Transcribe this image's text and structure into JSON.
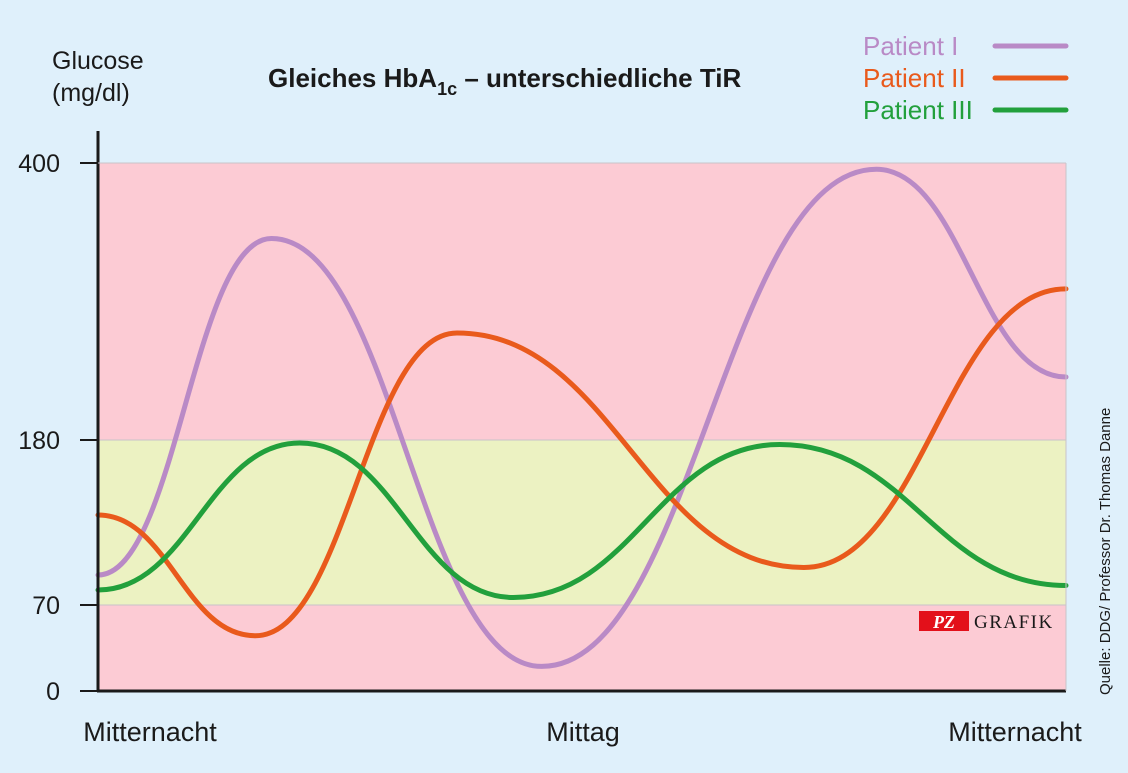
{
  "chart_data": {
    "type": "line",
    "title": "Gleiches HbA",
    "title_subscript": "1c",
    "title_suffix": " – unterschiedliche TiR",
    "ylabel_line1": "Glucose",
    "ylabel_line2": "(mg/dl)",
    "y_ticks": [
      "0",
      "70",
      "180",
      "400"
    ],
    "x_ticks": [
      "Mitternacht",
      "Mittag",
      "Mitternacht"
    ],
    "x_domain": [
      0,
      24
    ],
    "zones": [
      {
        "from": 0,
        "to": 70,
        "color": "#fccbd4"
      },
      {
        "from": 70,
        "to": 180,
        "color": "#ecf2c2"
      },
      {
        "from": 180,
        "to": 400,
        "color": "#fccbd4"
      }
    ],
    "grid": false,
    "legend_position": "top-right",
    "series": [
      {
        "name": "Patient I",
        "color": "#b98ac6",
        "x": [
          0,
          4.3,
          11,
          19.3,
          24
        ],
        "y": [
          90,
          340,
          20,
          395,
          230
        ]
      },
      {
        "name": "Patient II",
        "color": "#e95a1c",
        "x": [
          0,
          3.9,
          8.9,
          17.5,
          24
        ],
        "y": [
          130,
          45,
          265,
          95,
          300
        ]
      },
      {
        "name": "Patient III",
        "color": "#22a03c",
        "x": [
          0,
          5,
          10.3,
          16.9,
          24
        ],
        "y": [
          80,
          178,
          75,
          177,
          83
        ]
      }
    ],
    "source": "Quelle: DDG/ Professor Dr. Thomas Danne",
    "logo": {
      "badge": "PZ",
      "text": "GRAFIK"
    }
  }
}
